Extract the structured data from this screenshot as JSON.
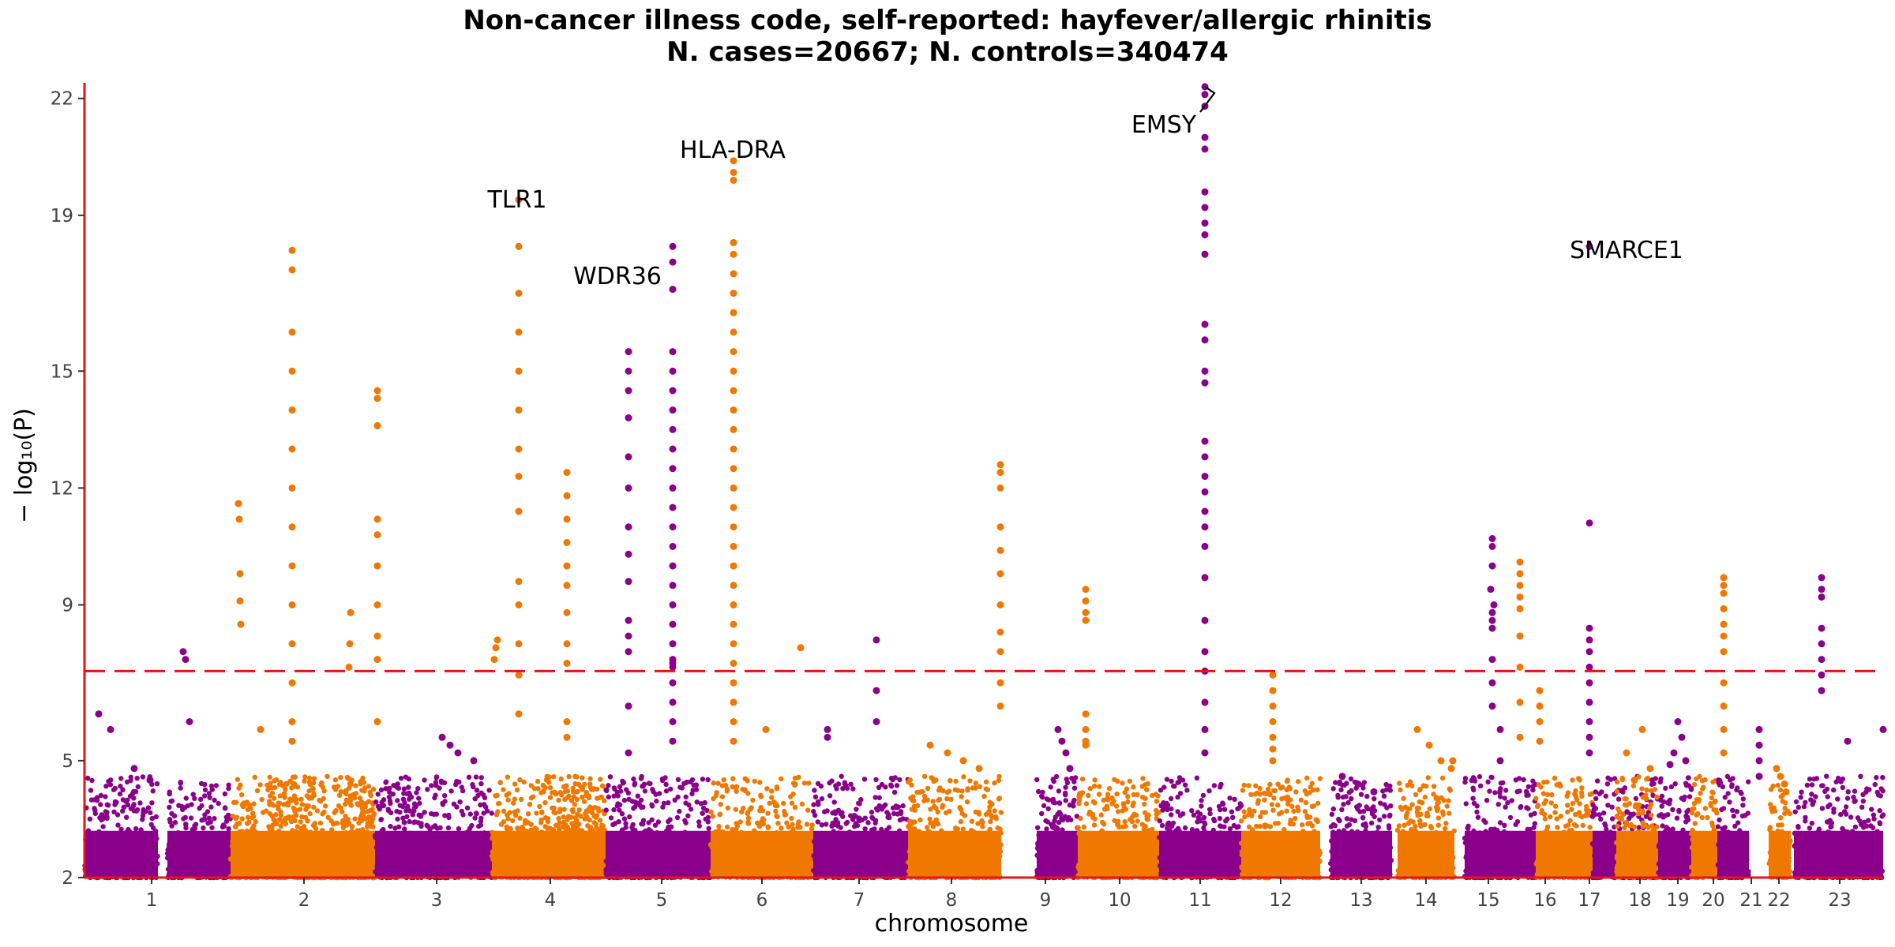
{
  "chart_data": {
    "type": "scatter",
    "subtype": "manhattan",
    "title": "Non-cancer illness code, self-reported: hayfever/allergic rhinitis",
    "subtitle": "N. cases=20667; N. controls=340474",
    "xlabel": "chromosome",
    "ylabel": "− log₁₀(P)",
    "ylim": [
      2,
      22.4
    ],
    "yticks": [
      2,
      5,
      9,
      12,
      15,
      19,
      22
    ],
    "significance_threshold": 7.3,
    "colors": {
      "odd": "#8B008B",
      "even": "#F07800",
      "threshold": "#EE1111",
      "axis": "#EE1111"
    },
    "chromosomes": [
      {
        "label": "1",
        "color": "odd",
        "peaks": [
          6.2,
          5.8,
          4.8,
          4.5
        ]
      },
      {
        "label": "",
        "color": "odd",
        "peaks": [
          7.8,
          7.6,
          6.0
        ]
      },
      {
        "label": "",
        "color": "even",
        "peaks": [
          11.6,
          11.2,
          9.8,
          9.1,
          8.5,
          5.8
        ]
      },
      {
        "label": "2",
        "color": "even",
        "peaks": [
          18.1,
          17.6,
          16.0,
          15.0,
          14.0,
          13.0,
          12.0,
          11.0,
          10.0,
          9.0,
          8.0,
          7.0,
          6.0,
          5.5,
          8.8,
          8.0,
          7.4
        ]
      },
      {
        "label": "",
        "color": "even",
        "peaks": [
          14.5,
          14.3,
          13.6,
          11.2,
          10.8,
          10.0,
          9.0,
          8.2,
          7.6,
          6.0
        ]
      },
      {
        "label": "3",
        "color": "odd",
        "peaks": [
          5.4,
          5.2,
          5.0,
          5.6
        ]
      },
      {
        "label": "",
        "color": "even",
        "peaks": [
          8.1,
          7.9,
          7.6,
          19.4,
          18.2,
          17.0,
          16.0,
          15.0,
          14.0,
          13.0,
          12.3,
          11.4,
          9.6,
          9.0,
          8.0,
          7.2,
          6.2
        ]
      },
      {
        "label": "4",
        "color": "even",
        "peaks": [
          12.4,
          11.8,
          11.2,
          10.6,
          10.0,
          9.5,
          8.8,
          8.0,
          7.5,
          6.0,
          5.6
        ]
      },
      {
        "label": "5",
        "color": "odd",
        "peaks": [
          15.5,
          15.0,
          14.5,
          13.8,
          12.8,
          12.0,
          11.0,
          10.3,
          9.6,
          8.6,
          8.2,
          7.8,
          6.4,
          5.2,
          18.2,
          17.8,
          17.1,
          15.5,
          15.0,
          14.5,
          14.0,
          13.5,
          13.0,
          12.5,
          12.0,
          11.5,
          11.0,
          10.5,
          10.0,
          9.5,
          9.0,
          8.5,
          8.0,
          7.5,
          7.0,
          6.5,
          6.0,
          5.5,
          7.6,
          7.4
        ]
      },
      {
        "label": "6",
        "color": "even",
        "peaks": [
          20.4,
          20.1,
          19.9,
          18.3,
          18.0,
          17.5,
          17.0,
          16.5,
          16.0,
          15.5,
          15.0,
          14.5,
          14.0,
          13.5,
          13.0,
          12.5,
          12.0,
          11.5,
          11.0,
          10.5,
          10.0,
          9.5,
          9.0,
          8.5,
          8.0,
          7.5,
          7.0,
          6.5,
          6.0,
          5.5,
          7.9,
          5.8
        ]
      },
      {
        "label": "7",
        "color": "odd",
        "peaks": [
          5.8,
          5.6,
          8.1,
          6.8,
          6.0
        ]
      },
      {
        "label": "8",
        "color": "even",
        "peaks": [
          5.4,
          5.2,
          5.0,
          4.8,
          12.6,
          12.4,
          12.0,
          11.0,
          10.4,
          9.8,
          9.0,
          8.3,
          7.8,
          7.0,
          6.4
        ]
      },
      {
        "label": "9",
        "color": "odd",
        "peaks": [
          5.8,
          5.5,
          5.2,
          4.8
        ]
      },
      {
        "label": "10",
        "color": "even",
        "peaks": [
          9.4,
          9.1,
          8.8,
          8.6,
          6.2,
          5.8,
          5.4,
          5.5
        ]
      },
      {
        "label": "11",
        "color": "odd",
        "peaks": [
          22.3,
          22.1,
          21.8,
          21.0,
          20.7,
          19.6,
          19.2,
          18.8,
          18.5,
          18.0,
          16.2,
          15.8,
          15.0,
          14.7,
          13.2,
          12.8,
          12.3,
          11.9,
          11.4,
          11.0,
          10.5,
          9.7,
          8.6,
          7.8,
          7.3,
          6.5,
          5.8,
          5.2
        ]
      },
      {
        "label": "12",
        "color": "even",
        "peaks": [
          7.2,
          6.8,
          6.4,
          6.0,
          5.6,
          5.3,
          5.0
        ]
      },
      {
        "label": "13",
        "color": "odd",
        "peaks": [
          4.6,
          4.4,
          4.2
        ]
      },
      {
        "label": "14",
        "color": "even",
        "peaks": [
          5.8,
          5.4,
          5.0,
          4.8,
          5.0
        ]
      },
      {
        "label": "15",
        "color": "odd",
        "peaks": [
          10.7,
          10.5,
          10.0,
          9.4,
          9.0,
          8.8,
          8.6,
          8.4,
          7.6,
          7.0,
          6.4,
          5.8,
          5.0
        ]
      },
      {
        "label": "16",
        "color": "even",
        "peaks": [
          10.1,
          9.8,
          9.5,
          9.2,
          8.9,
          8.2,
          7.4,
          6.5,
          5.6,
          6.8,
          6.4,
          6.0,
          5.5
        ]
      },
      {
        "label": "17",
        "color": "odd",
        "peaks": [
          18.2,
          11.1,
          8.4,
          8.1,
          7.8,
          7.4,
          7.0,
          6.5,
          6.0,
          5.6,
          5.2
        ]
      },
      {
        "label": "18",
        "color": "even",
        "peaks": [
          5.8,
          5.2,
          4.8,
          4.5
        ]
      },
      {
        "label": "19",
        "color": "odd",
        "peaks": [
          6.0,
          5.6,
          5.2,
          4.9,
          5.0
        ]
      },
      {
        "label": "20",
        "color": "even",
        "peaks": [
          9.7,
          9.5,
          9.3,
          8.9,
          8.5,
          8.2,
          7.8,
          7.0,
          6.4,
          5.8,
          5.2
        ]
      },
      {
        "label": "21",
        "color": "odd",
        "peaks": [
          5.8,
          5.4,
          5.0,
          4.6
        ]
      },
      {
        "label": "22",
        "color": "even",
        "peaks": [
          4.8,
          4.6,
          4.4,
          4.2
        ]
      },
      {
        "label": "23",
        "color": "odd",
        "peaks": [
          9.7,
          9.4,
          9.2,
          8.4,
          8.0,
          7.6,
          7.2,
          6.8,
          5.8,
          5.5
        ]
      }
    ],
    "annotations": [
      {
        "label": "TLR1",
        "point_x_chr": 6,
        "point_y": 19.4
      },
      {
        "label": "WDR36",
        "point_x_chr": 8,
        "point_y": 18.2
      },
      {
        "label": "HLA-DRA",
        "point_x_chr": 9,
        "point_y": 20.4
      },
      {
        "label": "EMSY",
        "point_x_chr": 14,
        "point_y": 22.3
      },
      {
        "label": "SMARCE1",
        "point_x_chr": 20,
        "point_y": 18.2
      }
    ]
  }
}
